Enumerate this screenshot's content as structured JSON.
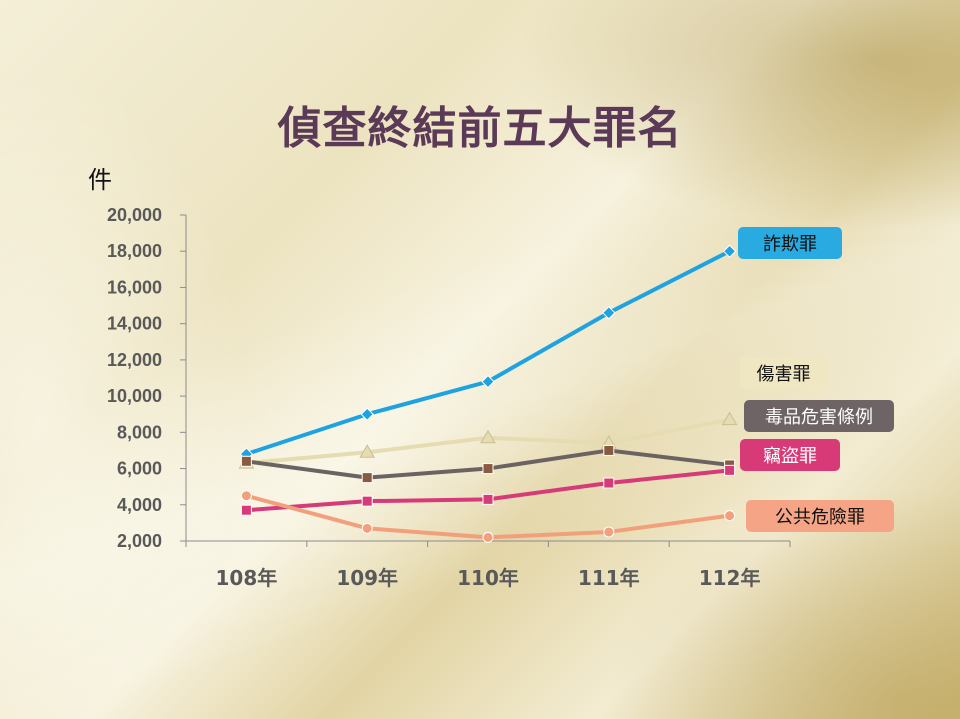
{
  "title": "偵查終結前五大罪名",
  "chart_data": {
    "type": "line",
    "title": "偵查終結前五大罪名",
    "ylabel": "件",
    "xlabel": "",
    "categories": [
      "108年",
      "109年",
      "110年",
      "111年",
      "112年"
    ],
    "ylim": [
      2000,
      20000
    ],
    "ytick_step": 2000,
    "ytick_labels": [
      "2,000",
      "4,000",
      "6,000",
      "8,000",
      "10,000",
      "12,000",
      "14,000",
      "16,000",
      "18,000",
      "20,000"
    ],
    "grid": false,
    "legend": "inline labels at right end of each line",
    "series": [
      {
        "name": "詐欺罪",
        "values": [
          6800,
          9000,
          10800,
          14600,
          18000
        ],
        "color": "#1fa3e0",
        "marker": "diamond",
        "label_bg": "#29abe2",
        "label_fg": "#111111"
      },
      {
        "name": "傷害罪",
        "values": [
          6300,
          6900,
          7700,
          7400,
          8700
        ],
        "color": "#e6dcb2",
        "marker": "triangle",
        "label_bg": "#efe6c2",
        "label_fg": "#111111"
      },
      {
        "name": "毒品危害條例",
        "values": [
          6400,
          5500,
          6000,
          7000,
          6200
        ],
        "color": "#6b6262",
        "marker": "square",
        "label_bg": "#6e6465",
        "label_fg": "#ffffff"
      },
      {
        "name": "竊盜罪",
        "values": [
          3700,
          4200,
          4300,
          5200,
          5900
        ],
        "color": "#d63a78",
        "marker": "square",
        "label_bg": "#d83a78",
        "label_fg": "#ffffff"
      },
      {
        "name": "公共危險罪",
        "values": [
          4500,
          2700,
          2200,
          2500,
          3400
        ],
        "color": "#f2a07c",
        "marker": "circle",
        "label_bg": "#f5a585",
        "label_fg": "#111111"
      }
    ]
  }
}
